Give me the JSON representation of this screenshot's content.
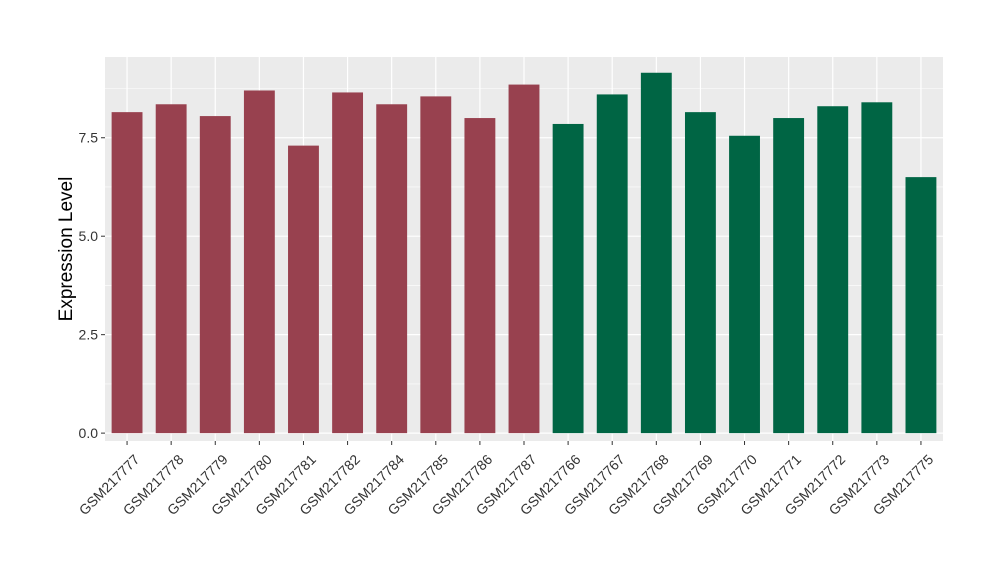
{
  "chart_data": {
    "type": "bar",
    "title": "",
    "xlabel": "",
    "ylabel": "Expression Level",
    "ylim": [
      -0.2,
      9.55
    ],
    "yticks": [
      0.0,
      2.5,
      5.0,
      7.5
    ],
    "ytick_labels": [
      "0.0",
      "2.5",
      "5.0",
      "7.5"
    ],
    "grid": true,
    "legend": "none",
    "categories": [
      "GSM217777",
      "GSM217778",
      "GSM217779",
      "GSM217780",
      "GSM217781",
      "GSM217782",
      "GSM217784",
      "GSM217785",
      "GSM217786",
      "GSM217787",
      "GSM217766",
      "GSM217767",
      "GSM217768",
      "GSM217769",
      "GSM217770",
      "GSM217771",
      "GSM217772",
      "GSM217773",
      "GSM217775"
    ],
    "values": [
      8.15,
      8.35,
      8.05,
      8.7,
      7.3,
      8.65,
      8.35,
      8.55,
      8.0,
      8.85,
      7.85,
      8.6,
      9.15,
      8.15,
      7.55,
      8.0,
      8.3,
      8.4,
      6.5
    ],
    "colors": [
      "#98414f",
      "#98414f",
      "#98414f",
      "#98414f",
      "#98414f",
      "#98414f",
      "#98414f",
      "#98414f",
      "#98414f",
      "#98414f",
      "#006544",
      "#006544",
      "#006544",
      "#006544",
      "#006544",
      "#006544",
      "#006544",
      "#006544",
      "#006544"
    ],
    "panel_background": "#ebebeb",
    "grid_color": "#ffffff"
  }
}
